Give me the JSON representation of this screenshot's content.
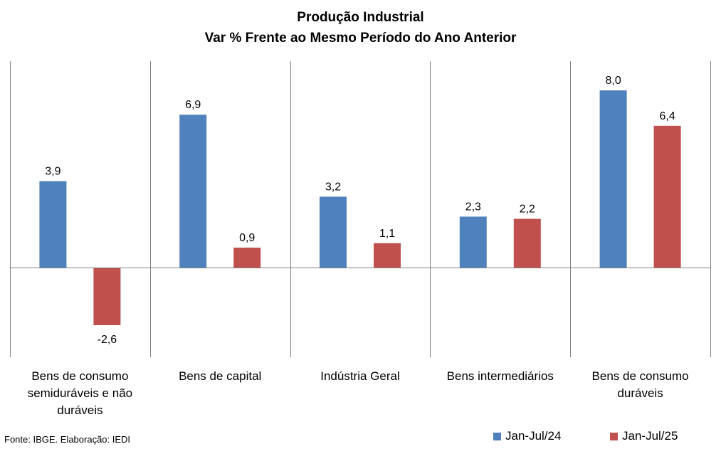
{
  "chart_data": {
    "type": "bar",
    "title": "Produção Industrial",
    "subtitle": "Var % Frente ao Mesmo Período do Ano Anterior",
    "categories": [
      "Bens de consumo semiduráveis e não duráveis",
      "Bens de capital",
      "Indústria Geral",
      "Bens intermediários",
      "Bens de consumo duráveis"
    ],
    "series": [
      {
        "name": "Jan-Jul/24",
        "color": "#4F81BD",
        "values": [
          3.9,
          6.9,
          3.2,
          2.3,
          8.0
        ],
        "labels": [
          "3,9",
          "6,9",
          "3,2",
          "2,3",
          "8,0"
        ]
      },
      {
        "name": "Jan-Jul/25",
        "color": "#C0504D",
        "values": [
          -2.6,
          0.9,
          1.1,
          2.2,
          6.4
        ],
        "labels": [
          "-2,6",
          "0,9",
          "1,1",
          "2,2",
          "6,4"
        ]
      }
    ],
    "xlabel": "",
    "ylabel": "",
    "ylim": [
      -4,
      10
    ],
    "grid": false,
    "legend": "bottom-right"
  },
  "footer": {
    "source": "Fonte: IBGE. Elaboração: IEDI"
  }
}
